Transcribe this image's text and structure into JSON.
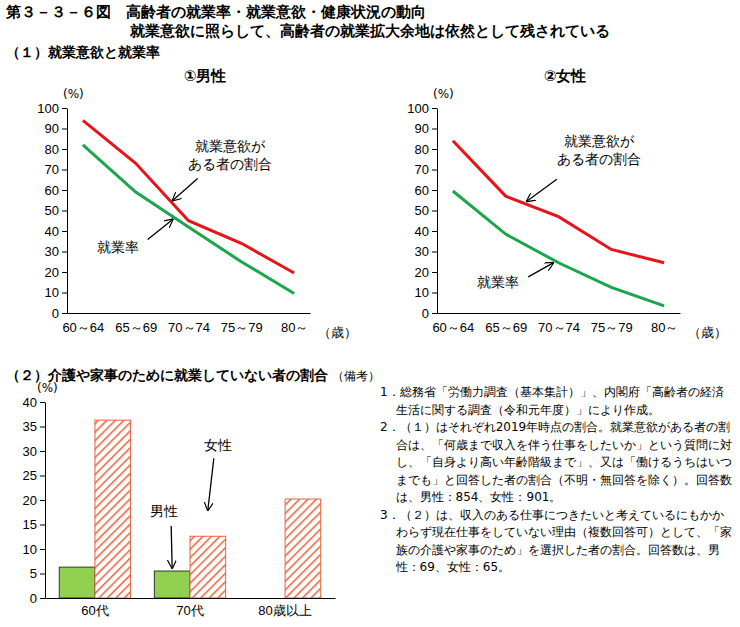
{
  "header": {
    "title": "第３－３－６図　高齢者の就業率・就業意欲・健康状況の動向",
    "subtitle": "就業意欲に照らして、高齢者の就業拡大余地は依然として残されている",
    "section": "（１）就業意欲と就業率"
  },
  "chart_data": [
    {
      "type": "line",
      "title": "①男性",
      "categories": [
        "60～64",
        "65～69",
        "70～74",
        "75～79",
        "80～"
      ],
      "series": [
        {
          "color": "#e8141b",
          "values": [
            94,
            73,
            45,
            34,
            19.5
          ]
        },
        {
          "color": "#1aa64a",
          "values": [
            82,
            59,
            42,
            25,
            9.5
          ]
        }
      ],
      "annotations": [
        [
          "就業意欲が",
          "ある者の割合"
        ],
        [
          "就業率"
        ]
      ],
      "xlabel": "（歳）",
      "ylabel": "(%)",
      "ylim": [
        0,
        100
      ],
      "yticks": [
        0,
        10,
        20,
        30,
        40,
        50,
        60,
        70,
        80,
        90,
        100
      ]
    },
    {
      "type": "line",
      "title": "②女性",
      "categories": [
        "60～64",
        "65～69",
        "70～74",
        "75～79",
        "80～"
      ],
      "series": [
        {
          "color": "#e8141b",
          "values": [
            84,
            57,
            47,
            31,
            24.5
          ]
        },
        {
          "color": "#1aa64a",
          "values": [
            59.5,
            38.5,
            24.5,
            12.5,
            3.5
          ]
        }
      ],
      "annotations": [
        [
          "就業意欲が",
          "ある者の割合"
        ],
        [
          "就業率"
        ]
      ],
      "xlabel": "（歳）",
      "ylabel": "(%)",
      "ylim": [
        0,
        100
      ],
      "yticks": [
        0,
        10,
        20,
        30,
        40,
        50,
        60,
        70,
        80,
        90,
        100
      ]
    },
    {
      "type": "bar",
      "title": "（２）介護や家事のために就業していない者の割合",
      "categories": [
        "60代",
        "70代",
        "80歳以上"
      ],
      "series": [
        {
          "name": "男性",
          "color": "#92d050",
          "values": [
            6.3,
            5.5,
            null
          ]
        },
        {
          "name": "女性",
          "color": "#e8603c",
          "values": [
            36.3,
            12.6,
            20.2
          ]
        }
      ],
      "ylabel": "(%)",
      "ylim": [
        0,
        40
      ],
      "yticks": [
        0,
        5,
        10,
        15,
        20,
        25,
        30,
        35,
        40
      ]
    }
  ],
  "notes": {
    "label": "（備考）",
    "items": [
      "1．総務省「労働力調査（基本集計）」、内閣府「高齢者の経済生活に関する調査（令和元年度）」により作成。",
      "2．（１）はそれぞれ2019年時点の割合。就業意欲がある者の割合は、「何歳まで収入を伴う仕事をしたいか」という質問に対し、「自身より高い年齢階級まで」、又は「働けるうちはいつまでも」と回答した者の割合（不明・無回答を除く）。回答数は、男性：854、女性：901。",
      "3．（２）は、収入のある仕事につきたいと考えているにもかかわらず現在仕事をしていない理由（複数回答可）として、「家族の介護や家事のため」を選択した者の割合。回答数は、男性：69、女性：65。"
    ]
  }
}
